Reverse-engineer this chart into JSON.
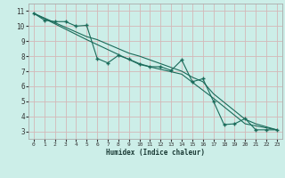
{
  "xlabel": "Humidex (Indice chaleur)",
  "bg_color": "#cceee8",
  "grid_color": "#d4b8b8",
  "line_color": "#1a6b5a",
  "ylim": [
    2.5,
    11.5
  ],
  "xlim": [
    -0.5,
    23.5
  ],
  "yticks": [
    3,
    4,
    5,
    6,
    7,
    8,
    9,
    10,
    11
  ],
  "xticks": [
    0,
    1,
    2,
    3,
    4,
    5,
    6,
    7,
    8,
    9,
    10,
    11,
    12,
    13,
    14,
    15,
    16,
    17,
    18,
    19,
    20,
    21,
    22,
    23
  ],
  "line1_x": [
    0,
    1,
    2,
    3,
    4,
    5,
    6,
    7,
    8,
    9,
    10,
    11,
    12,
    13,
    14,
    15,
    16,
    17,
    18,
    19,
    20,
    21,
    22,
    23
  ],
  "line1_y": [
    10.85,
    10.4,
    10.3,
    10.3,
    10.0,
    10.05,
    7.85,
    7.55,
    8.05,
    7.8,
    7.5,
    7.3,
    7.3,
    7.05,
    7.75,
    6.3,
    6.5,
    5.0,
    3.45,
    3.5,
    3.85,
    3.1,
    3.1,
    3.1
  ],
  "line2_x": [
    0,
    5,
    6,
    9,
    10,
    14,
    15,
    16,
    17,
    20,
    21,
    23
  ],
  "line2_y": [
    10.85,
    9.3,
    9.1,
    8.2,
    8.0,
    7.0,
    6.6,
    6.3,
    5.5,
    3.8,
    3.5,
    3.1
  ],
  "line3_x": [
    0,
    5,
    10,
    14,
    17,
    20,
    23
  ],
  "line3_y": [
    10.85,
    9.1,
    7.45,
    6.8,
    5.2,
    3.5,
    3.1
  ]
}
